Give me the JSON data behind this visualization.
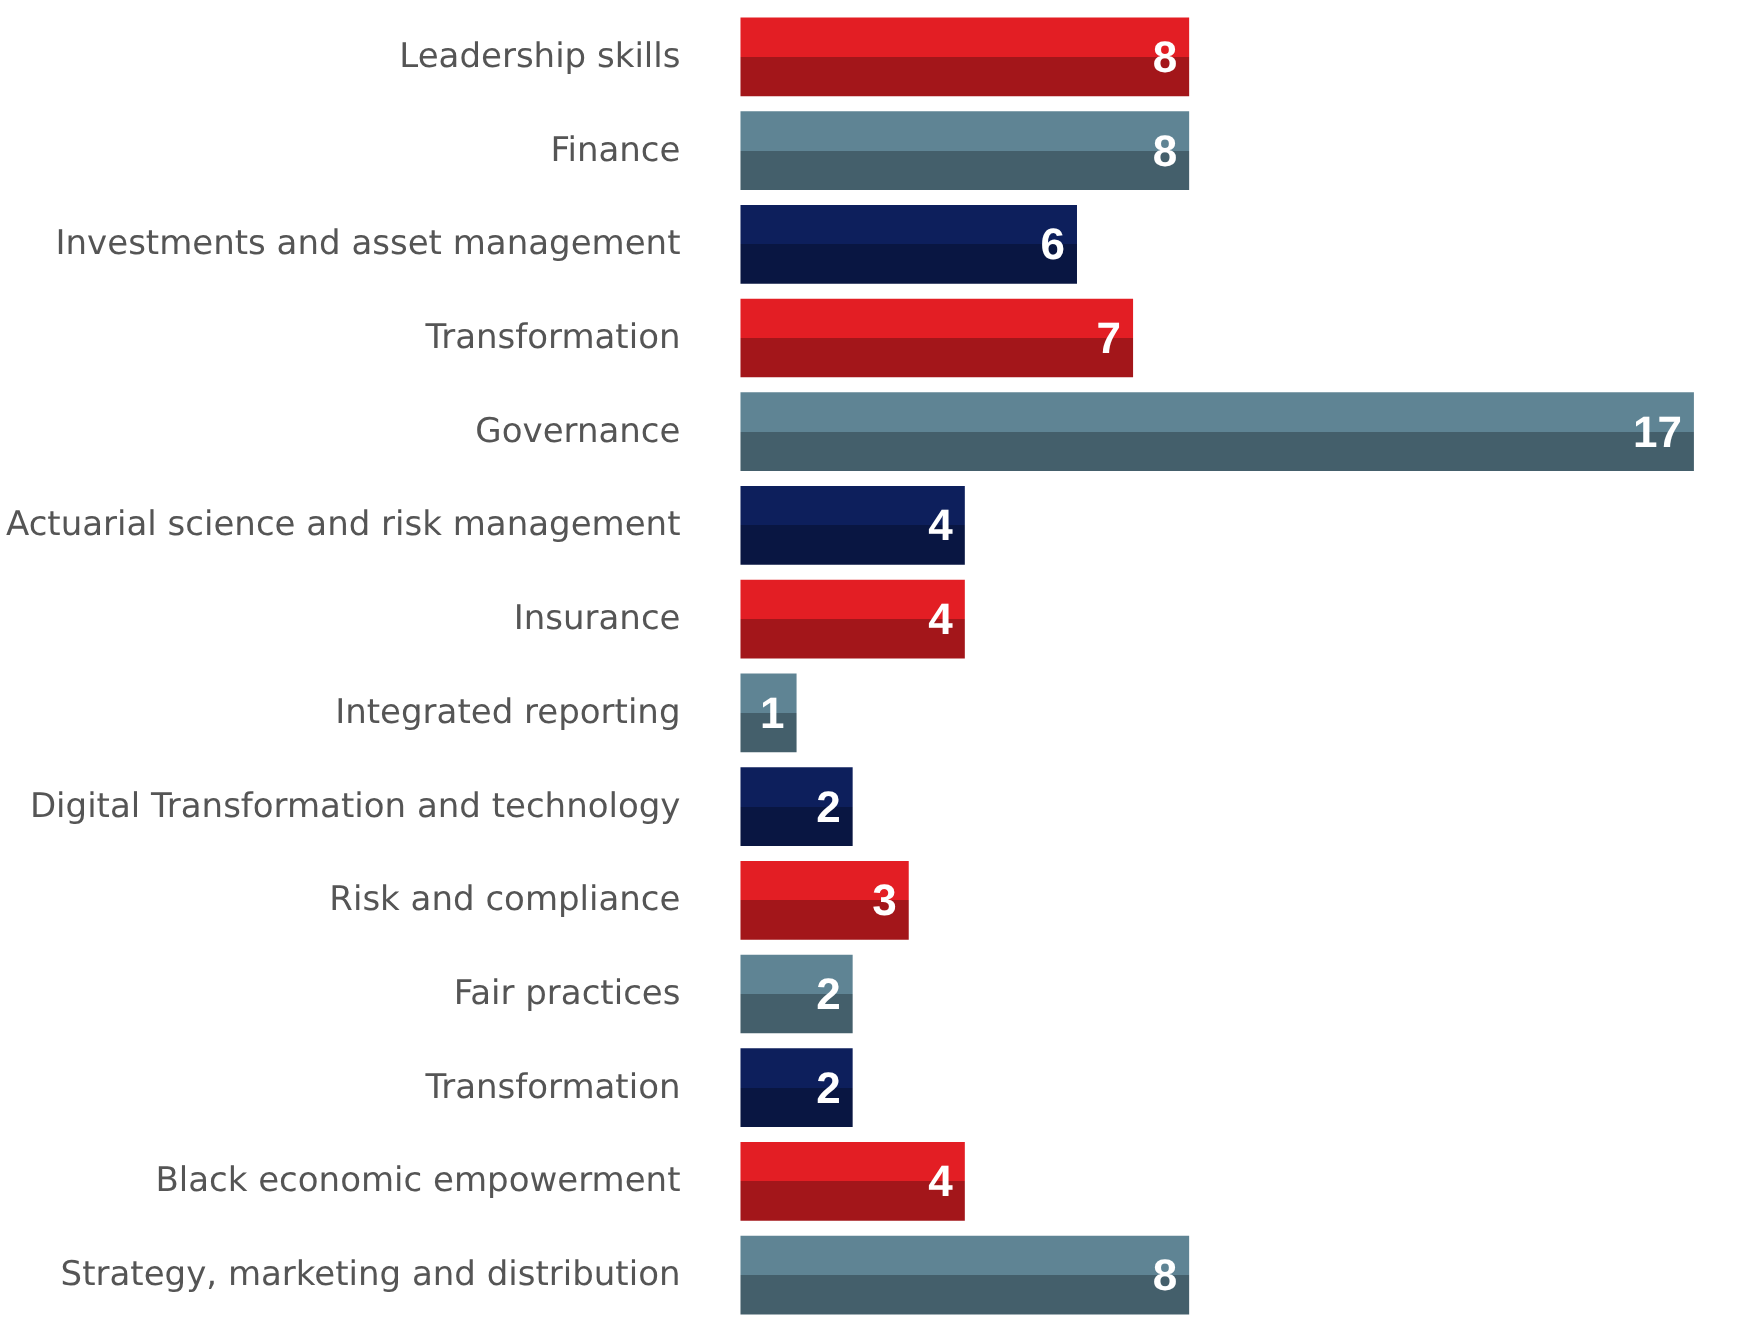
{
  "chart_data": {
    "type": "bar",
    "orientation": "horizontal",
    "data_labels": true,
    "categories": [
      "Leadership skills",
      "Finance",
      "Investments and asset management",
      "Transformation",
      "Governance",
      "Actuarial science and risk management",
      "Insurance",
      "Integrated reporting",
      "Digital Transformation and technology",
      "Risk and compliance",
      "Fair practices",
      "Transformation",
      "Black economic empowerment",
      "Strategy, marketing and distribution"
    ],
    "values": [
      8,
      8,
      6,
      7,
      17,
      4,
      4,
      1,
      2,
      3,
      2,
      2,
      4,
      8
    ],
    "colors": [
      "#e31e24",
      "#5f8494",
      "#0d1f5c",
      "#e31e24",
      "#5f8494",
      "#0d1f5c",
      "#e31e24",
      "#5f8494",
      "#0d1f5c",
      "#e31e24",
      "#5f8494",
      "#0d1f5c",
      "#e31e24",
      "#5f8494"
    ]
  }
}
